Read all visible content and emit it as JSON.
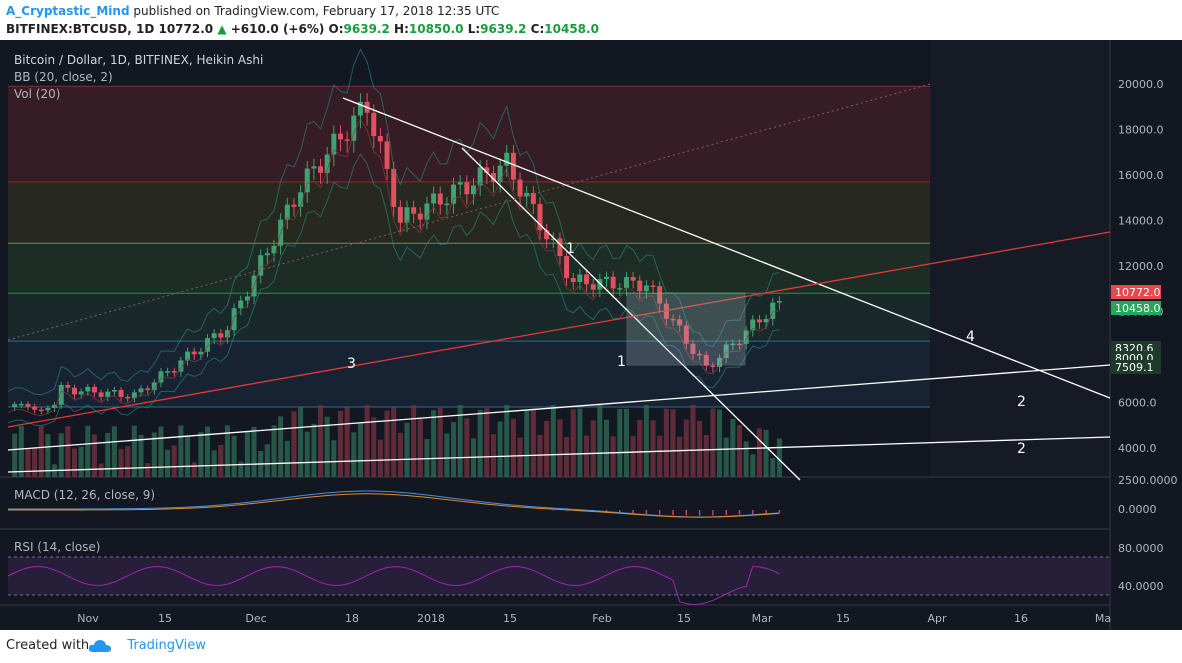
{
  "header": {
    "author": "A_Cryptastic_Mind",
    "published": "published on TradingView.com, February 17, 2018 12:35 UTC",
    "symbol": "BITFINEX:BTCUSD, 1D",
    "last": "10772.0",
    "change": "+610.0 (+6%)",
    "o_label": "O:",
    "o": "9639.2",
    "h_label": "H:",
    "h": "10850.0",
    "l_label": "L:",
    "l": "9639.2",
    "c_label": "C:",
    "c": "10458.0"
  },
  "legend": {
    "title": "Bitcoin / Dollar, 1D, BITFINEX, Heikin Ashi",
    "bb": "BB (20, close, 2)",
    "vol": "Vol (20)",
    "macd": "MACD (12, 26, close, 9)",
    "rsi": "RSI (14, close)"
  },
  "chart_data": {
    "type": "candlestick",
    "y_scale": "linear",
    "price_range": [
      3000,
      21000
    ],
    "price_ticks": [
      "20000.0",
      "18000.0",
      "16000.0",
      "14000.0",
      "12000.0",
      "10000.0",
      "8000.0",
      "6000.0",
      "4000.0"
    ],
    "x_ticks": [
      "Nov",
      "15",
      "Dec",
      "18",
      "2018",
      "15",
      "Feb",
      "15",
      "Mar",
      "15",
      "Apr",
      "16",
      "Ma"
    ],
    "price_badges": [
      {
        "text": "10772.0",
        "color": "#e9464f"
      },
      {
        "text": "10458.0",
        "color": "#26a65b"
      },
      {
        "text": "8320.6",
        "color": "#1e3a2a"
      },
      {
        "text": "8000.0",
        "color": "#1e3a2a"
      },
      {
        "text": "7509.1",
        "color": "#1e3a2a"
      }
    ],
    "annotations": [
      "1",
      "1",
      "3",
      "4",
      "2",
      "2"
    ],
    "fib_levels": [
      19900,
      15700,
      13000,
      10800,
      8700,
      5800
    ],
    "series_close_checkpoints": [
      {
        "date": "2017-11-01",
        "close": 6600
      },
      {
        "date": "2017-11-12",
        "close": 6300
      },
      {
        "date": "2017-11-26",
        "close": 9300
      },
      {
        "date": "2017-12-07",
        "close": 15500
      },
      {
        "date": "2017-12-17",
        "close": 19100
      },
      {
        "date": "2017-12-22",
        "close": 14000
      },
      {
        "date": "2018-01-07",
        "close": 16500
      },
      {
        "date": "2018-01-17",
        "close": 11300
      },
      {
        "date": "2018-01-28",
        "close": 11200
      },
      {
        "date": "2018-02-06",
        "close": 7500
      },
      {
        "date": "2018-02-17",
        "close": 10458
      }
    ],
    "macd_ticks": [
      "2500.0000",
      "0.0000"
    ],
    "rsi_ticks": [
      "80.0000",
      "40.0000"
    ]
  },
  "footer": {
    "created": "Created with",
    "brand": "TradingView"
  }
}
